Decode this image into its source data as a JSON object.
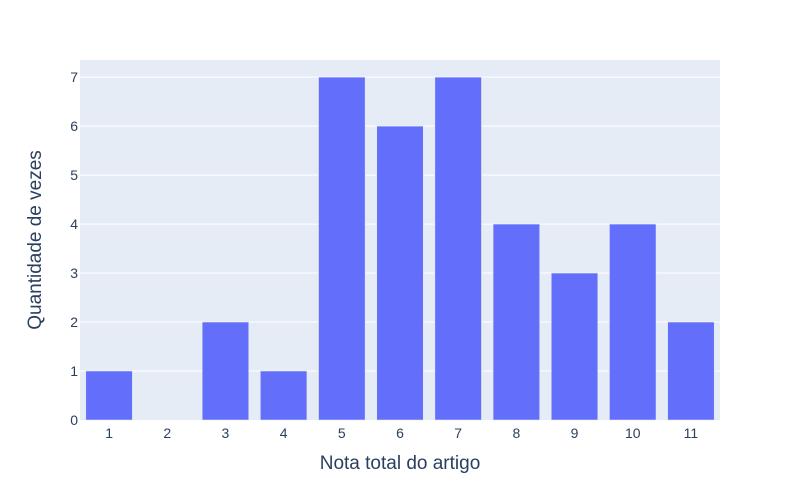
{
  "chart_data": {
    "type": "bar",
    "title": "",
    "xlabel": "Nota total do artigo",
    "ylabel": "Quantidade de vezes",
    "categories": [
      "1",
      "2",
      "3",
      "4",
      "5",
      "6",
      "7",
      "8",
      "9",
      "10",
      "11"
    ],
    "values": [
      1,
      0,
      2,
      1,
      7,
      6,
      7,
      4,
      3,
      4,
      2
    ],
    "ylim": [
      0,
      7.35
    ],
    "yticks": [
      0,
      1,
      2,
      3,
      4,
      5,
      6,
      7
    ],
    "grid": true,
    "legend": "none",
    "colors": {
      "bar": "#636efa",
      "plot_background": "#e5ecf6",
      "grid": "#ffffff",
      "text": "#2a3f5f"
    }
  }
}
